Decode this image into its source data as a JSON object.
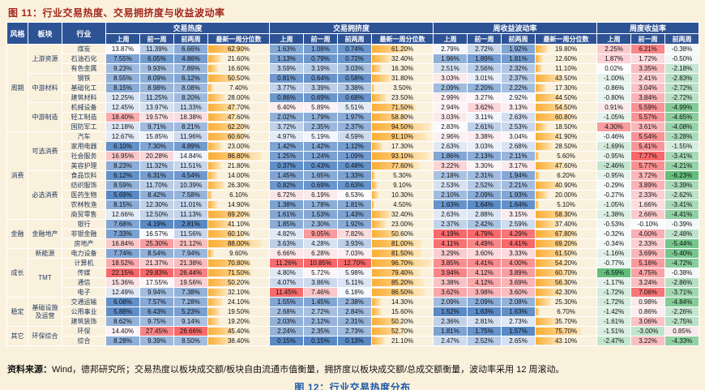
{
  "title": "图 11：行业交易热度、交易拥挤度与收益波动率",
  "source": {
    "prefix": "资料来源：",
    "text": "Wind，德邦研究所；交易热度以板块成交额/板块自由流通市值衡量，拥挤度以板块成交额/总成交额衡量，波动率采用 12 周滚动。"
  },
  "next_figure_title": "图 12：行业交易热度分布",
  "colors": {
    "background": "#FAF1DD",
    "header_bg": "#2E5395",
    "title_red": "#A3271E",
    "figure_caption_blue": "#1E5AA8",
    "value_low": "#5A8AC6",
    "value_mid": "#FCFCFF",
    "value_high": "#F8696B",
    "ret_low": "#63BE7B",
    "ret_mid": "#FCFCFF",
    "ret_high": "#F8696B",
    "bar_start": "#FBAD33",
    "bar_end": "#FDE9C0"
  },
  "table": {
    "corner_headers": [
      "风格",
      "板块",
      "行业"
    ],
    "group_headers": [
      {
        "label": "交易热度",
        "cols": 4
      },
      {
        "label": "交易拥挤度",
        "cols": 4
      },
      {
        "label": "周收益波动率",
        "cols": 4
      },
      {
        "label": "周度收益率",
        "cols": 3
      }
    ],
    "sub_headers": [
      "上周",
      "前一周",
      "前两周",
      "最新一周分位数",
      "上周",
      "前一周",
      "前两周",
      "最新一周分位数",
      "上周",
      "前一周",
      "前两周",
      "最新一周分位数",
      "上周",
      "前一周",
      "前两周"
    ],
    "rows": [
      {
        "style": "周期",
        "sector": "上游资源",
        "industry": "煤炭",
        "heat": [
          13.87,
          11.39,
          6.66
        ],
        "heat_pct": 62.9,
        "crowd": [
          1.63,
          1.08,
          0.74
        ],
        "crowd_pct": 61.2,
        "vol": [
          2.79,
          2.72,
          1.92
        ],
        "vol_pct": 19.8,
        "ret": [
          2.25,
          6.21,
          -0.38
        ]
      },
      {
        "style": "周期",
        "sector": "上游资源",
        "industry": "石油石化",
        "heat": [
          7.55,
          6.05,
          4.86
        ],
        "heat_pct": 21.6,
        "crowd": [
          1.13,
          0.79,
          0.72
        ],
        "crowd_pct": 32.4,
        "vol": [
          1.96,
          1.89,
          1.81
        ],
        "vol_pct": 12.6,
        "ret": [
          1.87,
          1.72,
          -0.5
        ]
      },
      {
        "style": "周期",
        "sector": "上游资源",
        "industry": "有色金属",
        "heat": [
          9.23,
          9.93,
          7.89
        ],
        "heat_pct": 16.6,
        "crowd": [
          3.59,
          3.19,
          3.03
        ],
        "crowd_pct": 16.3,
        "vol": [
          2.51,
          2.56,
          2.32
        ],
        "vol_pct": 11.1,
        "ret": [
          0.02,
          3.35,
          -2.18
        ]
      },
      {
        "style": "周期",
        "sector": "中游材料",
        "industry": "钢铁",
        "heat": [
          8.55,
          8.09,
          6.12
        ],
        "heat_pct": 50.5,
        "crowd": [
          0.81,
          0.64,
          0.58
        ],
        "crowd_pct": 31.8,
        "vol": [
          3.03,
          3.01,
          2.37
        ],
        "vol_pct": 43.5,
        "ret": [
          -1.0,
          2.41,
          -2.83
        ]
      },
      {
        "style": "周期",
        "sector": "中游材料",
        "industry": "基础化工",
        "heat": [
          8.15,
          8.98,
          8.08
        ],
        "heat_pct": 7.4,
        "crowd": [
          3.77,
          3.39,
          3.38
        ],
        "crowd_pct": 3.5,
        "vol": [
          2.09,
          2.2,
          2.22
        ],
        "vol_pct": 17.3,
        "ret": [
          -0.86,
          3.04,
          -2.72
        ]
      },
      {
        "style": "周期",
        "sector": "中游材料",
        "industry": "建筑材料",
        "heat": [
          12.25,
          11.25,
          8.2
        ],
        "heat_pct": 28.0,
        "crowd": [
          0.86,
          0.69,
          0.68
        ],
        "crowd_pct": 23.5,
        "vol": [
          2.99,
          3.27,
          2.92
        ],
        "vol_pct": 44.5,
        "ret": [
          -0.8,
          3.84,
          -2.72
        ]
      },
      {
        "style": "周期",
        "sector": "中游制造",
        "industry": "机械设备",
        "heat": [
          12.45,
          13.97,
          11.33
        ],
        "heat_pct": 47.7,
        "crowd": [
          6.4,
          5.89,
          5.51
        ],
        "crowd_pct": 71.5,
        "vol": [
          2.94,
          3.62,
          3.13
        ],
        "vol_pct": 54.5,
        "ret": [
          0.91,
          5.59,
          -4.99
        ]
      },
      {
        "style": "周期",
        "sector": "中游制造",
        "industry": "轻工制造",
        "heat": [
          18.4,
          19.57,
          18.38
        ],
        "heat_pct": 47.6,
        "crowd": [
          2.02,
          1.79,
          1.97
        ],
        "crowd_pct": 58.8,
        "vol": [
          3.03,
          3.11,
          2.63
        ],
        "vol_pct": 60.8,
        "ret": [
          -1.05,
          5.57,
          -4.65
        ]
      },
      {
        "style": "周期",
        "sector": "中游制造",
        "industry": "国防军工",
        "heat": [
          12.18,
          9.71,
          8.21
        ],
        "heat_pct": 62.2,
        "crowd": [
          3.72,
          2.35,
          2.37
        ],
        "crowd_pct": 94.5,
        "vol": [
          2.83,
          2.61,
          2.53
        ],
        "vol_pct": 18.5,
        "ret": [
          4.3,
          3.61,
          -4.08
        ]
      },
      {
        "style": "消费",
        "sector": "可选消费",
        "industry": "汽车",
        "heat": [
          12.67,
          15.85,
          11.96
        ],
        "heat_pct": 60.6,
        "crowd": [
          4.97,
          5.19,
          4.59
        ],
        "crowd_pct": 91.1,
        "vol": [
          2.96,
          3.38,
          3.04
        ],
        "vol_pct": 41.9,
        "ret": [
          -0.46,
          5.54,
          -3.28
        ]
      },
      {
        "style": "消费",
        "sector": "可选消费",
        "industry": "家用电器",
        "heat": [
          6.1,
          7.3,
          4.89
        ],
        "heat_pct": 23.0,
        "crowd": [
          1.42,
          1.42,
          1.12
        ],
        "crowd_pct": 17.3,
        "vol": [
          2.63,
          3.03,
          2.68
        ],
        "vol_pct": 28.5,
        "ret": [
          -1.69,
          5.41,
          -1.55
        ]
      },
      {
        "style": "消费",
        "sector": "可选消费",
        "industry": "社会服务",
        "heat": [
          16.95,
          20.28,
          14.84
        ],
        "heat_pct": 86.8,
        "crowd": [
          1.25,
          1.24,
          1.09
        ],
        "crowd_pct": 93.1,
        "vol": [
          1.86,
          2.13,
          2.11
        ],
        "vol_pct": 5.6,
        "ret": [
          -0.95,
          7.77,
          -3.41
        ]
      },
      {
        "style": "消费",
        "sector": "可选消费",
        "industry": "美容护理",
        "heat": [
          8.23,
          11.32,
          11.51
        ],
        "heat_pct": 21.8,
        "crowd": [
          0.37,
          0.43,
          0.48
        ],
        "crowd_pct": 77.6,
        "vol": [
          3.22,
          3.3,
          3.17
        ],
        "vol_pct": 47.6,
        "ret": [
          -2.46,
          5.77,
          -4.21
        ]
      },
      {
        "style": "消费",
        "sector": "必选消费",
        "industry": "食品饮料",
        "heat": [
          6.12,
          6.31,
          4.54
        ],
        "heat_pct": 14.0,
        "crowd": [
          1.45,
          1.65,
          1.33
        ],
        "crowd_pct": 5.3,
        "vol": [
          2.18,
          2.31,
          1.94
        ],
        "vol_pct": 6.2,
        "ret": [
          -0.95,
          3.72,
          -6.23
        ]
      },
      {
        "style": "消费",
        "sector": "必选消费",
        "industry": "纺织服饰",
        "heat": [
          8.59,
          11.7,
          10.39
        ],
        "heat_pct": 26.3,
        "crowd": [
          0.82,
          0.69,
          0.63
        ],
        "crowd_pct": 9.1,
        "vol": [
          2.53,
          2.52,
          2.21
        ],
        "vol_pct": 40.9,
        "ret": [
          -0.29,
          3.89,
          -3.39
        ]
      },
      {
        "style": "消费",
        "sector": "必选消费",
        "industry": "医药生物",
        "heat": [
          5.69,
          8.42,
          7.58
        ],
        "heat_pct": 6.1,
        "crowd": [
          6.72,
          6.19,
          6.53
        ],
        "crowd_pct": 10.3,
        "vol": [
          2.1,
          2.09,
          1.93
        ],
        "vol_pct": 20.0,
        "ret": [
          -0.27,
          2.33,
          -2.62
        ]
      },
      {
        "style": "消费",
        "sector": "必选消费",
        "industry": "农林牧渔",
        "heat": [
          8.15,
          12.3,
          11.01
        ],
        "heat_pct": 14.9,
        "crowd": [
          1.38,
          1.78,
          1.81
        ],
        "crowd_pct": 4.5,
        "vol": [
          1.63,
          1.64,
          1.64
        ],
        "vol_pct": 5.1,
        "ret": [
          -1.05,
          1.66,
          -3.41
        ]
      },
      {
        "style": "消费",
        "sector": "必选消费",
        "industry": "商贸零售",
        "heat": [
          12.66,
          12.5,
          11.13
        ],
        "heat_pct": 69.2,
        "crowd": [
          1.61,
          1.53,
          1.43
        ],
        "crowd_pct": 32.4,
        "vol": [
          2.63,
          2.88,
          3.15
        ],
        "vol_pct": 58.3,
        "ret": [
          -1.38,
          2.66,
          -4.41
        ]
      },
      {
        "style": "金融",
        "sector": "金融地产",
        "industry": "银行",
        "heat": [
          7.68,
          4.19,
          2.81
        ],
        "heat_pct": 41.1,
        "crowd": [
          1.85,
          2.3,
          1.92
        ],
        "crowd_pct": 23.0,
        "vol": [
          2.37,
          2.42,
          2.59
        ],
        "vol_pct": 37.4,
        "ret": [
          -0.53,
          -0.1,
          -0.39
        ]
      },
      {
        "style": "金融",
        "sector": "金融地产",
        "industry": "非银金融",
        "heat": [
          7.33,
          16.57,
          11.56
        ],
        "heat_pct": 60.1,
        "crowd": [
          4.82,
          9.05,
          7.82
        ],
        "crowd_pct": 50.6,
        "vol": [
          4.19,
          4.79,
          4.29
        ],
        "vol_pct": 67.8,
        "ret": [
          -0.32,
          4.0,
          -2.48
        ]
      },
      {
        "style": "金融",
        "sector": "金融地产",
        "industry": "房地产",
        "heat": [
          16.84,
          25.3,
          21.12
        ],
        "heat_pct": 88.0,
        "crowd": [
          3.63,
          4.28,
          3.93
        ],
        "crowd_pct": 81.0,
        "vol": [
          4.11,
          4.49,
          4.41
        ],
        "vol_pct": 69.2,
        "ret": [
          -0.34,
          2.33,
          -5.44
        ]
      },
      {
        "style": "成长",
        "sector": "新能源",
        "industry": "电力设备",
        "heat": [
          7.74,
          8.54,
          7.94
        ],
        "heat_pct": 9.6,
        "crowd": [
          6.66,
          6.28,
          7.03
        ],
        "crowd_pct": 81.5,
        "vol": [
          3.29,
          3.6,
          3.33
        ],
        "vol_pct": 61.5,
        "ret": [
          -1.16,
          3.69,
          -5.4
        ]
      },
      {
        "style": "成长",
        "sector": "TMT",
        "industry": "计算机",
        "heat": [
          18.52,
          21.37,
          21.38
        ],
        "heat_pct": 70.8,
        "crowd": [
          11.26,
          10.85,
          12.7
        ],
        "crowd_pct": 96.7,
        "vol": [
          3.85,
          4.41,
          4.0
        ],
        "vol_pct": 54.2,
        "ret": [
          -0.77,
          5.16,
          -4.72
        ]
      },
      {
        "style": "成长",
        "sector": "TMT",
        "industry": "传媒",
        "heat": [
          22.15,
          29.83,
          26.44
        ],
        "heat_pct": 71.5,
        "crowd": [
          4.8,
          5.72,
          5.98
        ],
        "crowd_pct": 79.4,
        "vol": [
          3.94,
          4.12,
          3.89
        ],
        "vol_pct": 60.7,
        "ret": [
          -6.59,
          4.75,
          -0.38
        ]
      },
      {
        "style": "成长",
        "sector": "TMT",
        "industry": "通信",
        "heat": [
          15.36,
          17.55,
          19.56
        ],
        "heat_pct": 50.2,
        "crowd": [
          4.07,
          3.86,
          5.11
        ],
        "crowd_pct": 85.2,
        "vol": [
          3.38,
          4.12,
          3.69
        ],
        "vol_pct": 56.3,
        "ret": [
          -1.17,
          3.24,
          -2.86
        ]
      },
      {
        "style": "成长",
        "sector": "TMT",
        "industry": "电子",
        "heat": [
          12.49,
          9.94,
          7.38
        ],
        "heat_pct": 32.1,
        "crowd": [
          11.45,
          7.46,
          6.18
        ],
        "crowd_pct": 86.5,
        "vol": [
          3.62,
          3.98,
          3.6
        ],
        "vol_pct": 42.3,
        "ret": [
          -1.72,
          7.06,
          -3.71
        ]
      },
      {
        "style": "稳定",
        "sector": "基础设施及运营",
        "industry": "交通运输",
        "heat": [
          6.08,
          7.57,
          7.28
        ],
        "heat_pct": 24.1,
        "crowd": [
          1.55,
          1.45,
          2.38
        ],
        "crowd_pct": 14.3,
        "vol": [
          2.09,
          2.09,
          2.08
        ],
        "vol_pct": 25.3,
        "ret": [
          -1.72,
          0.98,
          -4.84
        ]
      },
      {
        "style": "稳定",
        "sector": "基础设施及运营",
        "industry": "公用事业",
        "heat": [
          5.88,
          6.43,
          5.23
        ],
        "heat_pct": 19.5,
        "crowd": [
          2.68,
          2.72,
          2.84
        ],
        "crowd_pct": 15.6,
        "vol": [
          1.52,
          1.63,
          1.63
        ],
        "vol_pct": 6.7,
        "ret": [
          -1.42,
          0.86,
          -2.26
        ]
      },
      {
        "style": "稳定",
        "sector": "基础设施及运营",
        "industry": "建筑装饰",
        "heat": [
          8.62,
          9.75,
          9.14
        ],
        "heat_pct": 19.2,
        "crowd": [
          2.03,
          2.12,
          2.31
        ],
        "crowd_pct": 50.2,
        "vol": [
          2.36,
          2.81,
          2.73
        ],
        "vol_pct": 35.7,
        "ret": [
          -1.61,
          3.06,
          -2.75
        ]
      },
      {
        "style": "其它",
        "sector": "环保综合",
        "industry": "环保",
        "heat": [
          14.4,
          27.45,
          28.66
        ],
        "heat_pct": 45.4,
        "crowd": [
          2.24,
          2.35,
          2.73
        ],
        "crowd_pct": 52.7,
        "vol": [
          1.81,
          1.75,
          1.57
        ],
        "vol_pct": 75.7,
        "ret": [
          -1.51,
          -3.0,
          0.85
        ]
      },
      {
        "style": "其它",
        "sector": "环保综合",
        "industry": "综合",
        "heat": [
          8.28,
          9.39,
          8.5
        ],
        "heat_pct": 38.4,
        "crowd": [
          0.15,
          0.15,
          0.13
        ],
        "crowd_pct": 21.1,
        "vol": [
          2.47,
          2.52,
          2.65
        ],
        "vol_pct": 43.1,
        "ret": [
          -2.47,
          3.22,
          -4.33
        ]
      }
    ]
  }
}
